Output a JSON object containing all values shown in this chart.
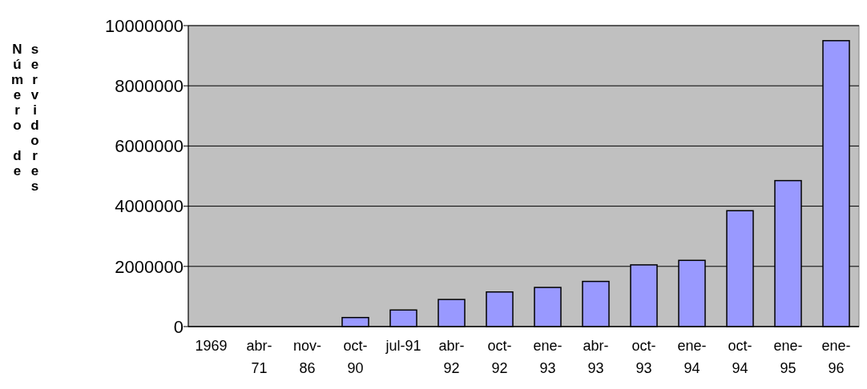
{
  "chart_data": {
    "type": "bar",
    "ylabel": "Número de servidores",
    "categories": [
      "1969",
      "abr-71",
      "nov-86",
      "oct-90",
      "jul-91",
      "abr-92",
      "oct-92",
      "ene-93",
      "abr-93",
      "oct-93",
      "ene-94",
      "oct-94",
      "ene-95",
      "ene-96"
    ],
    "values": [
      0,
      0,
      0,
      300000,
      550000,
      900000,
      1150000,
      1300000,
      1500000,
      2050000,
      2200000,
      3850000,
      4850000,
      9500000
    ],
    "color": "#9999ff",
    "ylim": [
      0,
      10000000
    ],
    "yticks": [
      0,
      2000000,
      4000000,
      6000000,
      8000000,
      10000000
    ],
    "grid": "y"
  }
}
